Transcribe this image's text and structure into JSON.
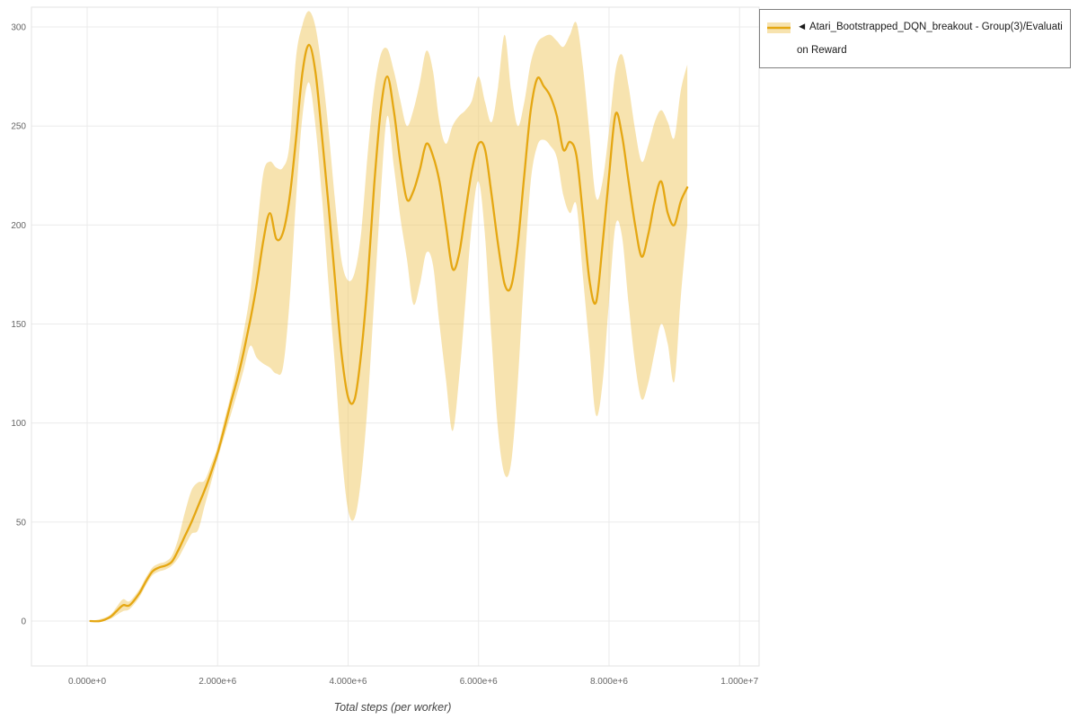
{
  "legend": {
    "text": "◄ Atari_Bootstrapped_DQN_breakout - Group(3)/Evaluation Reward",
    "series_name": "Atari_Bootstrapped_DQN_breakout - Group(3)/Evaluation Reward"
  },
  "colors": {
    "line": "#e5a712",
    "band": "#efc75f",
    "band_opacity": "0.5",
    "grid": "#ebebeb",
    "border": "#e3e3e3",
    "tick_text": "#666666",
    "axis_label": "#444444"
  },
  "axes": {
    "x_label": "Total steps (per worker)"
  },
  "chart_data": {
    "type": "line",
    "title": "",
    "xlabel": "Total steps (per worker)",
    "ylabel": "",
    "grid": true,
    "legend_position": "top-right",
    "xlim": [
      -854000,
      10300000
    ],
    "ylim": [
      -22.7,
      310
    ],
    "x_ticks": [
      {
        "v": 0,
        "label": "0.000e+0"
      },
      {
        "v": 2000000,
        "label": "2.000e+6"
      },
      {
        "v": 4000000,
        "label": "4.000e+6"
      },
      {
        "v": 6000000,
        "label": "6.000e+6"
      },
      {
        "v": 8000000,
        "label": "8.000e+6"
      },
      {
        "v": 10000000,
        "label": "1.000e+7"
      }
    ],
    "y_ticks": [
      {
        "v": 0,
        "label": "0"
      },
      {
        "v": 50,
        "label": "50"
      },
      {
        "v": 100,
        "label": "100"
      },
      {
        "v": 150,
        "label": "150"
      },
      {
        "v": 200,
        "label": "200"
      },
      {
        "v": 250,
        "label": "250"
      },
      {
        "v": 300,
        "label": "300"
      }
    ],
    "series": [
      {
        "name": "Atari_Bootstrapped_DQN_breakout - Group(3)/Evaluation Reward",
        "color": "#e5a712",
        "band_color": "#efc75f",
        "x": [
          50000,
          200000,
          350000,
          450000,
          550000,
          650000,
          800000,
          900000,
          1000000,
          1100000,
          1200000,
          1300000,
          1400000,
          1500000,
          1600000,
          1700000,
          1800000,
          1900000,
          2000000,
          2100000,
          2200000,
          2300000,
          2400000,
          2500000,
          2600000,
          2700000,
          2800000,
          2900000,
          3000000,
          3100000,
          3200000,
          3300000,
          3400000,
          3500000,
          3600000,
          3700000,
          3800000,
          3900000,
          4000000,
          4100000,
          4200000,
          4300000,
          4400000,
          4500000,
          4600000,
          4700000,
          4800000,
          4900000,
          5000000,
          5100000,
          5200000,
          5300000,
          5400000,
          5500000,
          5600000,
          5700000,
          5800000,
          5900000,
          6000000,
          6100000,
          6200000,
          6300000,
          6400000,
          6500000,
          6600000,
          6700000,
          6800000,
          6900000,
          7000000,
          7100000,
          7200000,
          7300000,
          7400000,
          7500000,
          7600000,
          7700000,
          7800000,
          7900000,
          8000000,
          8100000,
          8200000,
          8300000,
          8400000,
          8500000,
          8600000,
          8700000,
          8800000,
          8900000,
          9000000,
          9100000,
          9200000
        ],
        "mean": [
          0,
          0,
          2,
          5,
          8,
          8,
          14,
          20,
          25,
          27,
          28,
          30,
          36,
          43,
          50,
          58,
          66,
          75,
          85,
          97,
          110,
          122,
          136,
          152,
          170,
          192,
          206,
          193,
          196,
          213,
          243,
          277,
          291,
          277,
          245,
          210,
          172,
          135,
          113,
          112,
          135,
          172,
          220,
          258,
          275,
          258,
          232,
          213,
          217,
          228,
          241,
          235,
          222,
          200,
          178,
          185,
          207,
          228,
          241,
          238,
          215,
          190,
          170,
          169,
          190,
          225,
          258,
          274,
          270,
          265,
          255,
          238,
          242,
          235,
          205,
          172,
          161,
          190,
          225,
          256,
          245,
          222,
          200,
          184,
          195,
          212,
          222,
          206,
          200,
          212,
          219
        ],
        "lower": [
          0,
          0,
          1,
          3,
          5,
          6,
          12,
          18,
          23,
          25,
          26,
          28,
          32,
          38,
          44,
          46,
          58,
          70,
          82,
          93,
          104,
          115,
          127,
          139,
          133,
          130,
          128,
          125,
          128,
          160,
          212,
          255,
          272,
          250,
          214,
          170,
          128,
          85,
          56,
          52,
          72,
          110,
          162,
          215,
          255,
          230,
          204,
          183,
          160,
          170,
          186,
          180,
          150,
          122,
          96,
          122,
          162,
          202,
          222,
          194,
          142,
          96,
          74,
          80,
          120,
          176,
          222,
          240,
          243,
          240,
          234,
          215,
          206,
          210,
          174,
          138,
          104,
          120,
          162,
          200,
          194,
          160,
          130,
          112,
          120,
          136,
          150,
          140,
          121,
          164,
          200
        ],
        "upper": [
          0,
          1,
          3,
          7,
          11,
          10,
          16,
          22,
          27,
          29,
          30,
          33,
          42,
          55,
          66,
          70,
          71,
          79,
          88,
          101,
          114,
          129,
          146,
          166,
          196,
          226,
          232,
          229,
          229,
          240,
          284,
          301,
          308,
          300,
          278,
          248,
          212,
          182,
          172,
          176,
          196,
          236,
          268,
          286,
          289,
          278,
          263,
          250,
          258,
          272,
          288,
          278,
          252,
          241,
          250,
          255,
          258,
          263,
          275,
          262,
          252,
          270,
          296,
          268,
          250,
          262,
          282,
          292,
          295,
          296,
          293,
          290,
          296,
          302,
          280,
          246,
          214,
          222,
          248,
          278,
          286,
          270,
          248,
          232,
          240,
          252,
          258,
          252,
          244,
          268,
          281
        ]
      }
    ]
  }
}
